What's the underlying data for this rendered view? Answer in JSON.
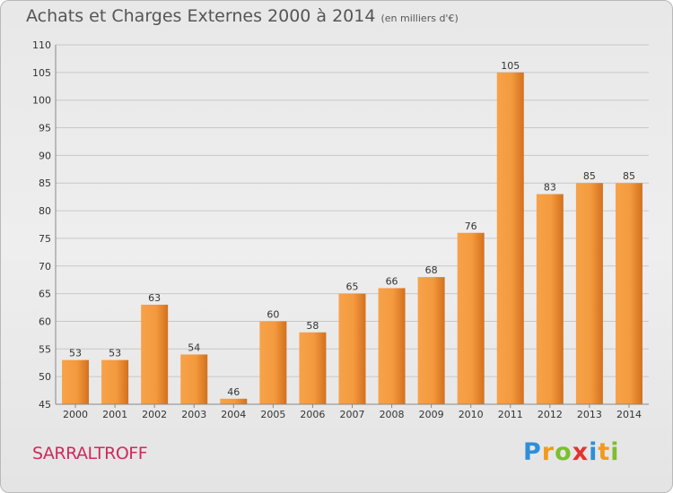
{
  "title": "Achats et Charges Externes 2000 à 2014",
  "subtitle": "(en milliers d'€)",
  "town": "SARRALTROFF",
  "logo": {
    "letters": [
      "P",
      "r",
      "o",
      "x",
      "i",
      "t",
      "i"
    ],
    "colors": [
      "#2e8fd8",
      "#f29a1e",
      "#7dbf2e",
      "#e3342f",
      "#2e8fd8",
      "#f29a1e",
      "#7dbf2e"
    ]
  },
  "colors": {
    "bar_light": "#f7a24a",
    "bar_dark": "#d3701e",
    "grid": "#c8c8c8",
    "axis_text": "#333333"
  },
  "chart_data": {
    "type": "bar",
    "categories": [
      "2000",
      "2001",
      "2002",
      "2003",
      "2004",
      "2005",
      "2006",
      "2007",
      "2008",
      "2009",
      "2010",
      "2011",
      "2012",
      "2013",
      "2014"
    ],
    "values": [
      53,
      53,
      63,
      54,
      46,
      60,
      58,
      65,
      66,
      68,
      76,
      105,
      83,
      85,
      85
    ],
    "ylim": [
      45,
      110
    ],
    "yticks": [
      45,
      50,
      55,
      60,
      65,
      70,
      75,
      80,
      85,
      90,
      95,
      100,
      105,
      110
    ],
    "grid": true,
    "data_labels": true
  }
}
